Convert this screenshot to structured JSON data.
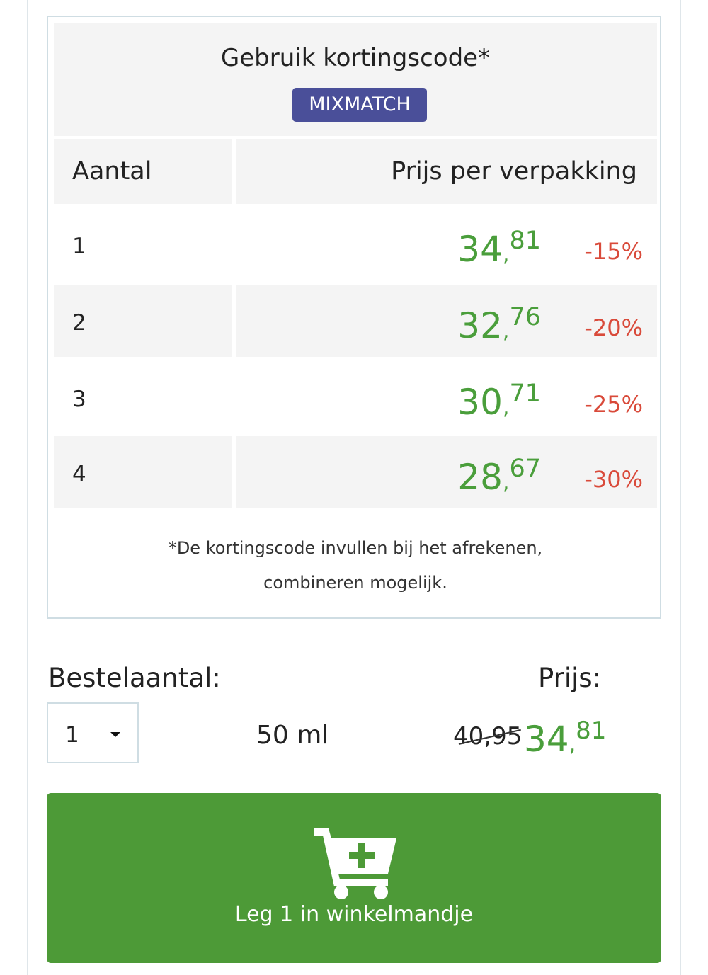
{
  "discount": {
    "title": "Gebruik kortingscode*",
    "code": "MIXMATCH",
    "columns": {
      "quantity": "Aantal",
      "price": "Prijs per verpakking"
    },
    "tiers": [
      {
        "qty": "1",
        "price_int": "34",
        "price_dec": "81",
        "percent": "-15%"
      },
      {
        "qty": "2",
        "price_int": "32",
        "price_dec": "76",
        "percent": "-20%"
      },
      {
        "qty": "3",
        "price_int": "30",
        "price_dec": "71",
        "percent": "-25%"
      },
      {
        "qty": "4",
        "price_int": "28",
        "price_dec": "67",
        "percent": "-30%"
      }
    ],
    "note_line1": "*De kortingscode invullen bij het afrekenen,",
    "note_line2": "combineren mogelijk."
  },
  "order": {
    "quantity_label": "Bestelaantal:",
    "quantity_value": "1",
    "volume": "50 ml",
    "price_label": "Prijs:",
    "old_price": "40,95",
    "new_price_int": "34",
    "new_price_dec": "81"
  },
  "cart_button": {
    "label": "Leg 1 in winkelmandje",
    "icon": "cart-plus-icon"
  },
  "colors": {
    "green": "#4a9e3b",
    "button": "#4d9a37",
    "badge": "#4a4f99",
    "discount_red": "#d94a3a"
  }
}
